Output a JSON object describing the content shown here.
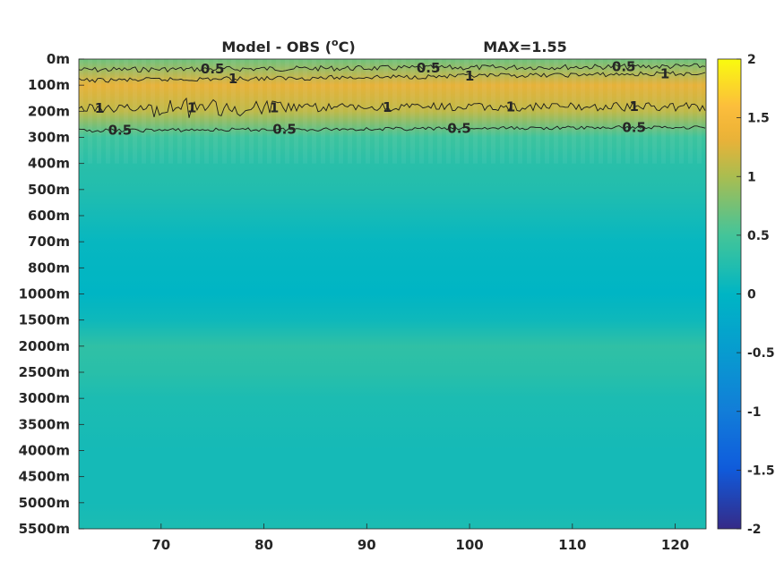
{
  "chart_data": {
    "type": "heatmap",
    "title_left": "Model - OBS (",
    "title_unit_sup": "o",
    "title_unit": "C)",
    "title_right": "MAX=1.55",
    "xlabel": "",
    "ylabel": "",
    "x_ticks": [
      70,
      80,
      90,
      100,
      110,
      120
    ],
    "xlim": [
      62,
      123
    ],
    "y_labels": [
      "0m",
      "100m",
      "200m",
      "300m",
      "400m",
      "500m",
      "600m",
      "700m",
      "800m",
      "1000m",
      "1500m",
      "2000m",
      "2500m",
      "3000m",
      "3500m",
      "4000m",
      "4500m",
      "5000m",
      "5500m"
    ],
    "colorbar": {
      "ticks": [
        2,
        1.5,
        1,
        0.5,
        0,
        -0.5,
        -1,
        -1.5,
        -2
      ],
      "range": [
        -2,
        2
      ],
      "colormap": "parula"
    },
    "layers": [
      {
        "depth": "0m",
        "value": 0.7
      },
      {
        "depth": "100m",
        "value": 1.3
      },
      {
        "depth": "200m",
        "value": 1.1
      },
      {
        "depth": "300m",
        "value": 0.45
      },
      {
        "depth": "400m",
        "value": 0.3
      },
      {
        "depth": "500m",
        "value": 0.25
      },
      {
        "depth": "600m",
        "value": 0.15
      },
      {
        "depth": "700m",
        "value": 0.05
      },
      {
        "depth": "800m",
        "value": 0.02
      },
      {
        "depth": "1000m",
        "value": 0.0
      },
      {
        "depth": "1500m",
        "value": 0.1
      },
      {
        "depth": "2000m",
        "value": 0.35
      },
      {
        "depth": "2500m",
        "value": 0.3
      },
      {
        "depth": "3000m",
        "value": 0.2
      },
      {
        "depth": "3500m",
        "value": 0.18
      },
      {
        "depth": "4000m",
        "value": 0.15
      },
      {
        "depth": "4500m",
        "value": 0.15
      },
      {
        "depth": "5000m",
        "value": 0.15
      },
      {
        "depth": "5500m",
        "value": 0.2
      }
    ],
    "contours": [
      {
        "level": 0.5,
        "label": "0.5",
        "label_x": [
          75,
          96,
          115
        ]
      },
      {
        "level": 1,
        "label": "1",
        "label_x": [
          77,
          100,
          119
        ]
      },
      {
        "level": 1,
        "label": "1",
        "label_x": [
          64,
          73,
          81,
          92,
          104,
          116
        ]
      },
      {
        "level": 0.5,
        "label": "0.5",
        "label_x": [
          66,
          82,
          99,
          116
        ]
      }
    ]
  }
}
